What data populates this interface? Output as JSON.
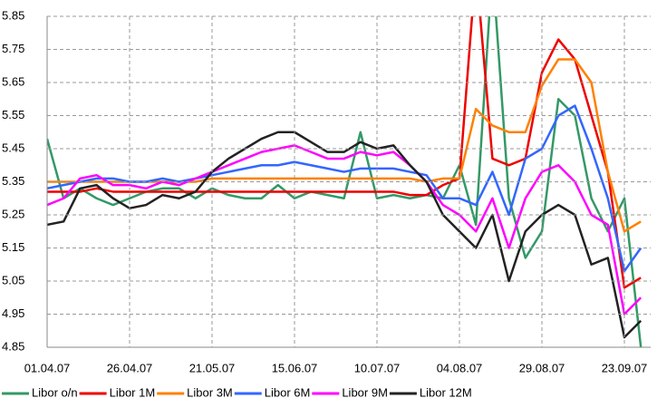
{
  "chart_data": {
    "type": "line",
    "categories": [
      "01.04.07",
      null,
      null,
      null,
      null,
      "26.04.07",
      null,
      null,
      null,
      null,
      "21.05.07",
      null,
      null,
      null,
      null,
      "15.06.07",
      null,
      null,
      null,
      null,
      "10.07.07",
      null,
      null,
      null,
      null,
      "04.08.07",
      null,
      null,
      null,
      null,
      "29.08.07",
      null,
      null,
      null,
      null,
      "23.09.07",
      null
    ],
    "ylim": [
      4.85,
      5.85
    ],
    "yticks": [
      4.85,
      4.95,
      5.05,
      5.15,
      5.25,
      5.35,
      5.45,
      5.55,
      5.65,
      5.75,
      5.85
    ],
    "grid": true,
    "legend": "bottom",
    "series": [
      {
        "name": "Libor o/n",
        "color": "#339966",
        "values": [
          5.48,
          5.3,
          5.33,
          5.3,
          5.28,
          5.3,
          5.32,
          5.33,
          5.33,
          5.3,
          5.33,
          5.31,
          5.3,
          5.3,
          5.34,
          5.3,
          5.32,
          5.31,
          5.3,
          5.5,
          5.3,
          5.31,
          5.3,
          5.31,
          5.3,
          5.4,
          5.22,
          6.0,
          5.3,
          5.12,
          5.2,
          5.6,
          5.55,
          5.3,
          5.2,
          5.3,
          4.85
        ]
      },
      {
        "name": "Libor 1M",
        "color": "#ee0000",
        "values": [
          5.32,
          5.32,
          5.32,
          5.33,
          5.32,
          5.32,
          5.32,
          5.32,
          5.32,
          5.32,
          5.32,
          5.32,
          5.32,
          5.32,
          5.32,
          5.32,
          5.32,
          5.32,
          5.32,
          5.32,
          5.32,
          5.32,
          5.31,
          5.31,
          5.34,
          5.36,
          6.0,
          5.42,
          5.4,
          5.42,
          5.68,
          5.78,
          5.72,
          5.55,
          5.38,
          5.03,
          5.06
        ]
      },
      {
        "name": "Libor 3M",
        "color": "#ff8000",
        "values": [
          5.35,
          5.35,
          5.35,
          5.35,
          5.35,
          5.35,
          5.35,
          5.35,
          5.35,
          5.35,
          5.36,
          5.36,
          5.36,
          5.36,
          5.36,
          5.36,
          5.36,
          5.36,
          5.36,
          5.36,
          5.36,
          5.36,
          5.36,
          5.35,
          5.36,
          5.36,
          5.57,
          5.52,
          5.5,
          5.5,
          5.64,
          5.72,
          5.72,
          5.65,
          5.38,
          5.2,
          5.23
        ]
      },
      {
        "name": "Libor 6M",
        "color": "#3366ff",
        "values": [
          5.33,
          5.34,
          5.35,
          5.36,
          5.36,
          5.35,
          5.35,
          5.36,
          5.35,
          5.36,
          5.37,
          5.38,
          5.39,
          5.4,
          5.4,
          5.41,
          5.4,
          5.39,
          5.38,
          5.39,
          5.39,
          5.39,
          5.38,
          5.37,
          5.3,
          5.3,
          5.28,
          5.38,
          5.25,
          5.42,
          5.45,
          5.55,
          5.58,
          5.45,
          5.3,
          5.08,
          5.15
        ]
      },
      {
        "name": "Libor 9M",
        "color": "#ff00ff",
        "values": [
          5.28,
          5.3,
          5.36,
          5.37,
          5.34,
          5.34,
          5.33,
          5.35,
          5.34,
          5.36,
          5.38,
          5.4,
          5.42,
          5.44,
          5.45,
          5.46,
          5.44,
          5.42,
          5.42,
          5.44,
          5.43,
          5.44,
          5.4,
          5.35,
          5.28,
          5.25,
          5.2,
          5.3,
          5.15,
          5.3,
          5.38,
          5.4,
          5.35,
          5.25,
          5.22,
          4.95,
          5.0
        ]
      },
      {
        "name": "Libor 12M",
        "color": "#222222",
        "values": [
          5.22,
          5.23,
          5.33,
          5.34,
          5.3,
          5.27,
          5.28,
          5.31,
          5.3,
          5.32,
          5.38,
          5.42,
          5.45,
          5.48,
          5.5,
          5.5,
          5.47,
          5.44,
          5.44,
          5.47,
          5.45,
          5.46,
          5.4,
          5.35,
          5.25,
          5.2,
          5.15,
          5.25,
          5.05,
          5.2,
          5.25,
          5.28,
          5.25,
          5.1,
          5.12,
          4.88,
          4.93
        ]
      }
    ]
  }
}
